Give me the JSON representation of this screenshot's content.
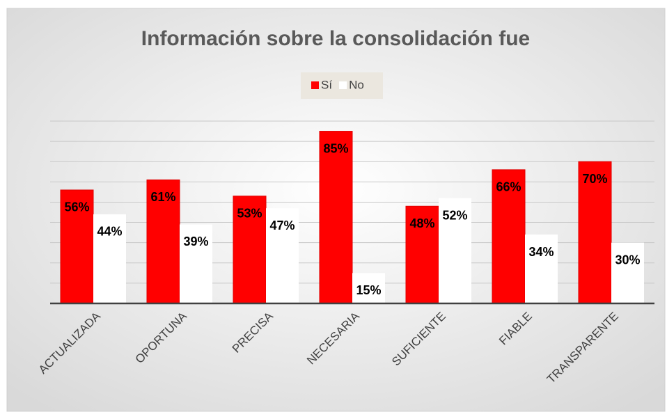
{
  "chart_data": {
    "type": "bar",
    "title": "Información sobre la consolidación fue",
    "categories": [
      "ACTUALIZADA",
      "OPORTUNA",
      "PRECISA",
      "NECESARIA",
      "SUFICIENTE",
      "FIABLE",
      "TRANSPARENTE"
    ],
    "series": [
      {
        "name": "Sí",
        "color": "#ff0000",
        "values": [
          56,
          61,
          53,
          85,
          48,
          66,
          70
        ],
        "value_labels": [
          "56%",
          "61%",
          "53%",
          "85%",
          "48%",
          "66%",
          "70%"
        ]
      },
      {
        "name": "No",
        "color": "#ffffff",
        "values": [
          44,
          39,
          47,
          15,
          52,
          34,
          30
        ],
        "value_labels": [
          "44%",
          "39%",
          "47%",
          "15%",
          "52%",
          "34%",
          "30%"
        ]
      }
    ],
    "ylim": [
      0,
      90
    ],
    "yticks": [
      0,
      10,
      20,
      30,
      40,
      50,
      60,
      70,
      80,
      90
    ],
    "grid": true,
    "legend": "top"
  }
}
